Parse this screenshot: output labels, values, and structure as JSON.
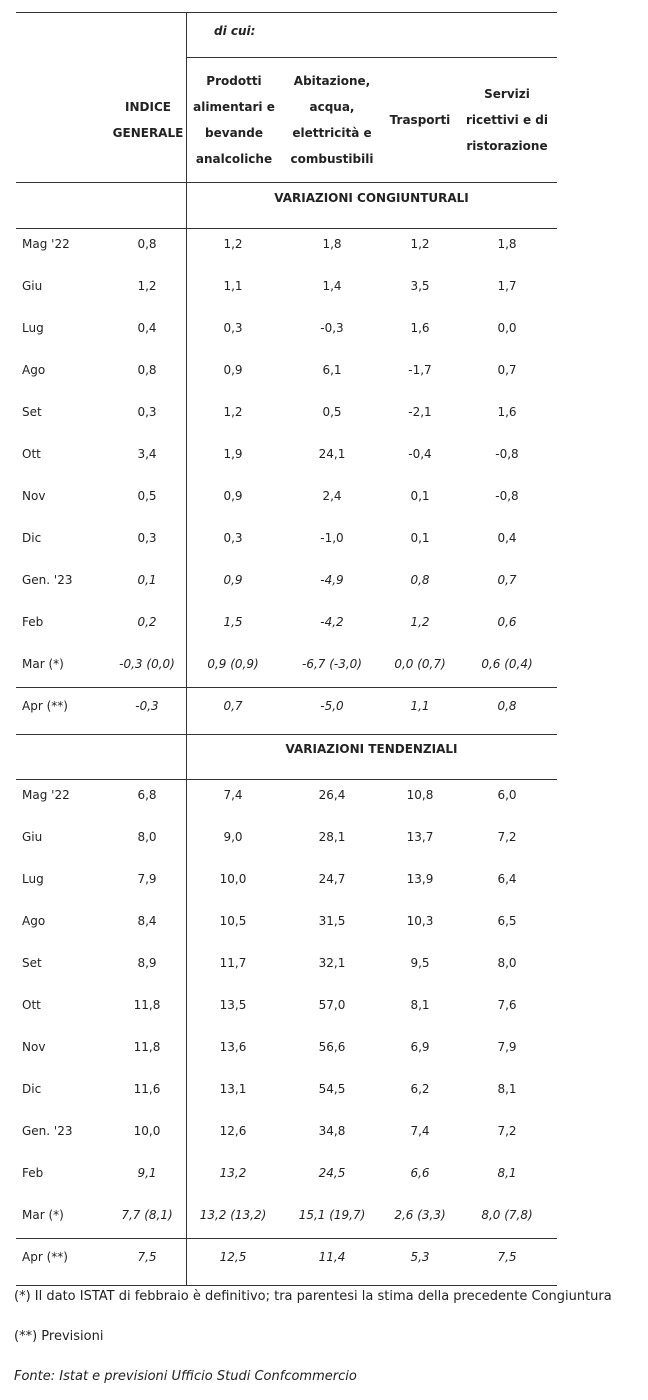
{
  "header": {
    "di_cui": "di cui:",
    "columns": [
      {
        "lines": [
          "INDICE",
          "GENERALE"
        ]
      },
      {
        "lines": [
          "Prodotti",
          "alimentari e",
          "bevande",
          "analcoliche"
        ]
      },
      {
        "lines": [
          "Abitazione,",
          "acqua,",
          "elettricità e",
          "combustibili"
        ]
      },
      {
        "lines": [
          "Trasporti"
        ]
      },
      {
        "lines": [
          "Servizi",
          "ricettivi e di",
          "ristorazione"
        ]
      }
    ]
  },
  "sections": [
    {
      "title": "VARIAZIONI CONGIUNTURALI",
      "rows": [
        {
          "label": "Mag '22",
          "italic": false,
          "values": [
            "0,8",
            "1,2",
            "1,8",
            "1,2",
            "1,8"
          ]
        },
        {
          "label": "Giu",
          "italic": false,
          "values": [
            "1,2",
            "1,1",
            "1,4",
            "3,5",
            "1,7"
          ]
        },
        {
          "label": "Lug",
          "italic": false,
          "values": [
            "0,4",
            "0,3",
            "-0,3",
            "1,6",
            "0,0"
          ]
        },
        {
          "label": "Ago",
          "italic": false,
          "values": [
            "0,8",
            "0,9",
            "6,1",
            "-1,7",
            "0,7"
          ]
        },
        {
          "label": "Set",
          "italic": false,
          "values": [
            "0,3",
            "1,2",
            "0,5",
            "-2,1",
            "1,6"
          ]
        },
        {
          "label": "Ott",
          "italic": false,
          "values": [
            "3,4",
            "1,9",
            "24,1",
            "-0,4",
            "-0,8"
          ]
        },
        {
          "label": "Nov",
          "italic": false,
          "values": [
            "0,5",
            "0,9",
            "2,4",
            "0,1",
            "-0,8"
          ]
        },
        {
          "label": "Dic",
          "italic": false,
          "values": [
            "0,3",
            "0,3",
            "-1,0",
            "0,1",
            "0,4"
          ]
        },
        {
          "label": "Gen. '23",
          "italic": true,
          "values": [
            "0,1",
            "0,9",
            "-4,9",
            "0,8",
            "0,7"
          ]
        },
        {
          "label": "Feb",
          "italic": true,
          "values": [
            "0,2",
            "1,5",
            "-4,2",
            "1,2",
            "0,6"
          ]
        },
        {
          "label": "Mar (*)",
          "italic": true,
          "values": [
            "-0,3 (0,0)",
            "0,9 (0,9)",
            "-6,7 (-3,0)",
            "0,0 (0,7)",
            "0,6 (0,4)"
          ]
        },
        {
          "label": "Apr (**)",
          "italic": true,
          "values": [
            "-0,3",
            "0,7",
            "-5,0",
            "1,1",
            "0,8"
          ]
        }
      ]
    },
    {
      "title": "VARIAZIONI TENDENZIALI",
      "rows": [
        {
          "label": "Mag '22",
          "italic": false,
          "values": [
            "6,8",
            "7,4",
            "26,4",
            "10,8",
            "6,0"
          ]
        },
        {
          "label": "Giu",
          "italic": false,
          "values": [
            "8,0",
            "9,0",
            "28,1",
            "13,7",
            "7,2"
          ]
        },
        {
          "label": "Lug",
          "italic": false,
          "values": [
            "7,9",
            "10,0",
            "24,7",
            "13,9",
            "6,4"
          ]
        },
        {
          "label": "Ago",
          "italic": false,
          "values": [
            "8,4",
            "10,5",
            "31,5",
            "10,3",
            "6,5"
          ]
        },
        {
          "label": "Set",
          "italic": false,
          "values": [
            "8,9",
            "11,7",
            "32,1",
            "9,5",
            "8,0"
          ]
        },
        {
          "label": "Ott",
          "italic": false,
          "values": [
            "11,8",
            "13,5",
            "57,0",
            "8,1",
            "7,6"
          ]
        },
        {
          "label": "Nov",
          "italic": false,
          "values": [
            "11,8",
            "13,6",
            "56,6",
            "6,9",
            "7,9"
          ]
        },
        {
          "label": "Dic",
          "italic": false,
          "values": [
            "11,6",
            "13,1",
            "54,5",
            "6,2",
            "8,1"
          ]
        },
        {
          "label": "Gen. '23",
          "italic": false,
          "values": [
            "10,0",
            "12,6",
            "34,8",
            "7,4",
            "7,2"
          ]
        },
        {
          "label": "Feb",
          "italic": true,
          "values": [
            "9,1",
            "13,2",
            "24,5",
            "6,6",
            "8,1"
          ]
        },
        {
          "label": "Mar (*)",
          "italic": true,
          "values": [
            "7,7 (8,1)",
            "13,2 (13,2)",
            "15,1 (19,7)",
            "2,6 (3,3)",
            "8,0 (7,8)"
          ]
        },
        {
          "label": "Apr (**)",
          "italic": true,
          "values": [
            "7,5",
            "12,5",
            "11,4",
            "5,3",
            "7,5"
          ]
        }
      ]
    }
  ],
  "footnotes": {
    "note1": "(*) Il dato ISTAT di febbraio è definitivo; tra parentesi la stima della precedente Congiuntura",
    "note2": "(**) Previsioni",
    "source": "Fonte: Istat e previsioni Ufficio Studi Confcommercio"
  }
}
